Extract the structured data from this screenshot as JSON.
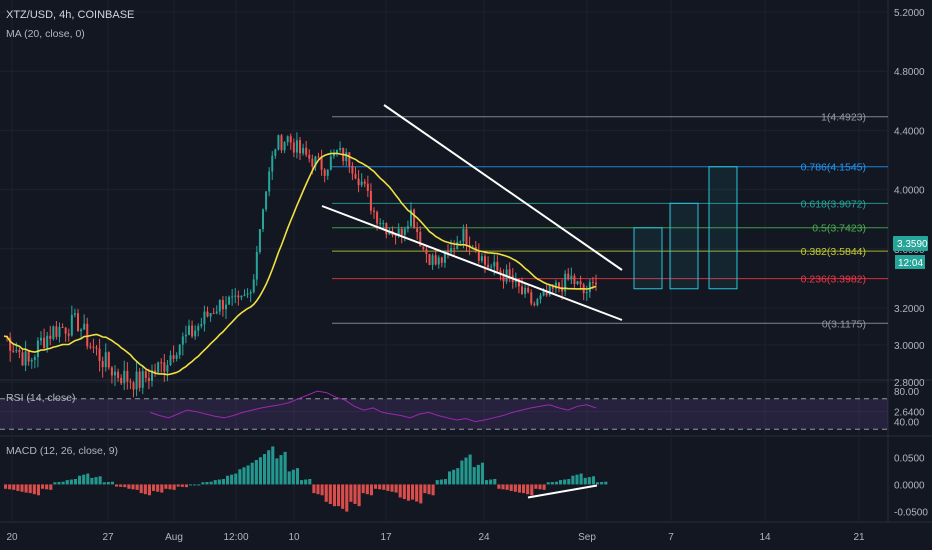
{
  "header": {
    "symbol": "XTZ/USD, 4h, COINBASE",
    "ma_indicator": "MA (20, close, 0)"
  },
  "panes": {
    "rsi_label": "RSI (14, close)",
    "macd_label": "MACD (12, 26, close, 9)"
  },
  "price_badge": {
    "price": "3.3590",
    "countdown": "12:04",
    "color": "#26a69a"
  },
  "colors": {
    "background": "#131722",
    "up_candle": "#26a69a",
    "down_candle": "#ef5350",
    "ma": "#f0e040",
    "rsi": "#9c27b0",
    "trendline": "#ffffff"
  },
  "chart_data": [
    {
      "type": "candlestick",
      "title": "XTZ/USD, 4h, COINBASE",
      "y_ticks": [
        "5.2000",
        "4.8000",
        "4.4000",
        "4.0000",
        "3.6000",
        "3.2000",
        "3.0000",
        "2.8000",
        "2.6400"
      ],
      "y_tick_values": [
        5.2,
        4.8,
        4.4,
        4.0,
        3.6,
        3.2,
        3.0,
        2.8,
        2.64
      ],
      "ylim": [
        2.6,
        5.25
      ],
      "x_tick_labels": [
        "20",
        "27",
        "Aug",
        "12:00",
        "10",
        "17",
        "24",
        "Sep",
        "7",
        "14",
        "21"
      ],
      "last_price": 3.359,
      "close_series_approx": [
        3.05,
        2.98,
        2.9,
        3.02,
        3.08,
        3.1,
        3.12,
        3.0,
        2.92,
        2.85,
        2.82,
        2.8,
        2.85,
        2.9,
        3.0,
        3.05,
        3.12,
        3.2,
        3.25,
        3.22,
        3.3,
        3.9,
        4.3,
        4.35,
        4.25,
        4.2,
        4.15,
        4.25,
        4.2,
        4.05,
        3.85,
        3.75,
        3.7,
        3.85,
        3.6,
        3.5,
        3.55,
        3.7,
        3.65,
        3.5,
        3.45,
        3.4,
        3.3,
        3.22,
        3.28,
        3.35,
        3.4,
        3.3,
        3.359
      ],
      "moving_average": "MA (20, close, 0)",
      "fibonacci_levels": [
        {
          "ratio": "1",
          "value": 4.4923,
          "label": "1(4.4923)",
          "color": "#9598a1"
        },
        {
          "ratio": "0.786",
          "value": 4.1545,
          "label": "0.786(4.1545)",
          "color": "#2196f3"
        },
        {
          "ratio": "0.618",
          "value": 3.9072,
          "label": "0.618(3.9072)",
          "color": "#26a69a"
        },
        {
          "ratio": "0.5",
          "value": 3.7423,
          "label": "0.5(3.7423)",
          "color": "#4caf50"
        },
        {
          "ratio": "0.382",
          "value": 3.5844,
          "label": "0.382(3.5844)",
          "color": "#c0ca33"
        },
        {
          "ratio": "0.236",
          "value": 3.3982,
          "label": "0.236(3.3982)",
          "color": "#f23645"
        },
        {
          "ratio": "0",
          "value": 3.1175,
          "label": "0(3.1175)",
          "color": "#9598a1"
        }
      ],
      "target_boxes_top": [
        3.7423,
        3.9072,
        4.1545
      ],
      "box_base": 3.33
    },
    {
      "type": "line",
      "title": "RSI (14, close)",
      "y_ticks": [
        "80.00",
        "40.00"
      ],
      "y_tick_values": [
        80,
        40
      ],
      "ylim": [
        25,
        88
      ],
      "band": [
        30,
        70
      ],
      "values": [
        52,
        48,
        45,
        50,
        55,
        53,
        50,
        47,
        45,
        48,
        52,
        55,
        58,
        60,
        62,
        65,
        70,
        75,
        80,
        78,
        72,
        68,
        60,
        55,
        58,
        52,
        50,
        48,
        45,
        50,
        52,
        48,
        45,
        42,
        44,
        40,
        42,
        45,
        48,
        52,
        55,
        58,
        60,
        62,
        58,
        55,
        60,
        62,
        58
      ]
    },
    {
      "type": "bar",
      "title": "MACD (12, 26, close, 9)",
      "y_ticks": [
        "0.0500",
        "0.0000",
        "-0.0500"
      ],
      "y_tick_values": [
        0.05,
        0.0,
        -0.05
      ],
      "ylim": [
        -0.06,
        0.08
      ],
      "histogram": [
        -0.01,
        -0.015,
        -0.02,
        -0.01,
        0.005,
        0.01,
        0.02,
        0.015,
        0.005,
        -0.005,
        -0.01,
        -0.02,
        -0.015,
        -0.01,
        -0.005,
        0.0,
        0.005,
        0.01,
        0.02,
        0.035,
        0.05,
        0.07,
        0.06,
        0.03,
        0.01,
        -0.02,
        -0.04,
        -0.05,
        -0.04,
        -0.02,
        -0.01,
        -0.015,
        -0.03,
        -0.035,
        -0.02,
        0.01,
        0.03,
        0.055,
        0.04,
        0.01,
        -0.01,
        -0.015,
        -0.02,
        -0.01,
        0.005,
        0.01,
        0.02,
        0.015,
        0.005
      ]
    }
  ]
}
